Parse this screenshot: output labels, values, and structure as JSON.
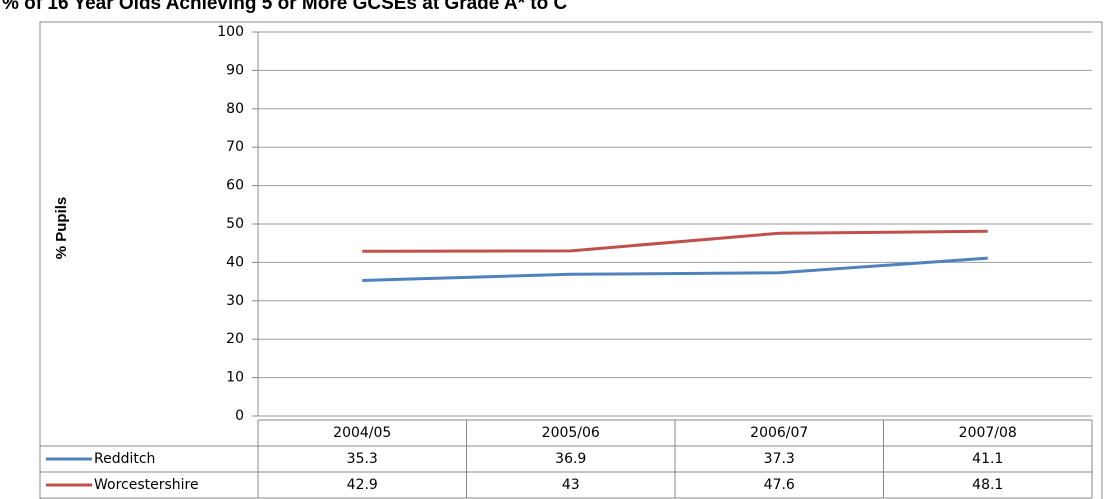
{
  "chart_data": {
    "type": "line",
    "title": "% of 16 Year Olds Achieving 5 or More GCSEs at Grade A* to C",
    "y_label": "% Pupils",
    "categories": [
      "2004/05",
      "2005/06",
      "2006/07",
      "2007/08"
    ],
    "series": [
      {
        "name": "Redditch",
        "color": "#4f81bd",
        "values": [
          35.3,
          36.9,
          37.3,
          41.1
        ]
      },
      {
        "name": "Worcestershire",
        "color": "#c0504d",
        "values": [
          42.9,
          43,
          47.6,
          48.1
        ]
      }
    ],
    "ylim": [
      0,
      100
    ],
    "yticks": [
      0,
      10,
      20,
      30,
      40,
      50,
      60,
      70,
      80,
      90,
      100
    ],
    "grid": true
  }
}
